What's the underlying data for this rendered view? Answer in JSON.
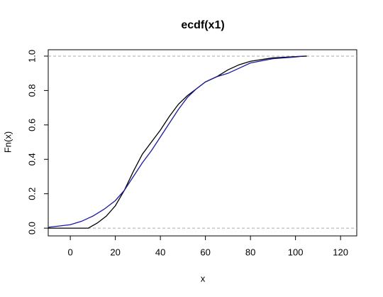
{
  "chart_data": {
    "type": "line",
    "title": "ecdf(x1)",
    "x_label": "x",
    "y_label": "Fn(x)",
    "xlim": [
      -9.8,
      127.2
    ],
    "ylim": [
      -0.045,
      1.037
    ],
    "xticks": [
      0,
      20,
      40,
      60,
      80,
      100,
      120
    ],
    "yticks": [
      {
        "value": 0,
        "label": "0.0"
      },
      {
        "value": 0.2,
        "label": "0.2"
      },
      {
        "value": 0.4,
        "label": "0.4"
      },
      {
        "value": 0.6,
        "label": "0.6"
      },
      {
        "value": 0.8,
        "label": "0.8"
      },
      {
        "value": 1,
        "label": "1.0"
      }
    ],
    "hlines": [
      0,
      1
    ],
    "series": [
      {
        "color": "#000000",
        "x": [
          -9.8,
          8,
          12,
          16,
          20,
          24,
          28,
          32,
          36,
          40,
          44,
          48,
          52,
          56,
          60,
          65,
          70,
          75,
          80,
          90,
          105
        ],
        "values": [
          0,
          0,
          0.03,
          0.07,
          0.13,
          0.22,
          0.33,
          0.43,
          0.5,
          0.57,
          0.65,
          0.72,
          0.77,
          0.81,
          0.85,
          0.88,
          0.92,
          0.95,
          0.97,
          0.99,
          1
        ]
      },
      {
        "color": "#1a1aa0",
        "x": [
          -9.8,
          0,
          5,
          10,
          15,
          20,
          24,
          28,
          32,
          36,
          40,
          44,
          48,
          52,
          56,
          60,
          65,
          70,
          75,
          80,
          90,
          100,
          103
        ],
        "values": [
          0.005,
          0.02,
          0.04,
          0.07,
          0.11,
          0.16,
          0.22,
          0.3,
          0.38,
          0.45,
          0.53,
          0.61,
          0.69,
          0.76,
          0.81,
          0.85,
          0.88,
          0.9,
          0.93,
          0.96,
          0.985,
          0.995,
          1
        ]
      }
    ]
  }
}
